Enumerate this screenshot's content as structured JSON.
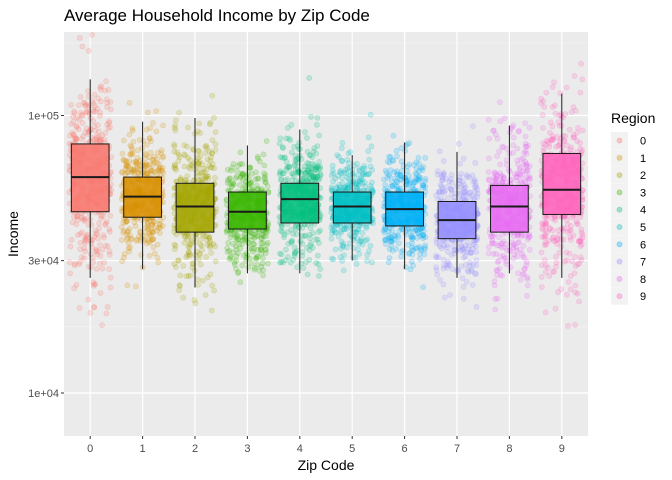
{
  "chart_data": {
    "type": "box-jitter",
    "title": "Average Household Income by Zip Code",
    "xlabel": "Zip Code",
    "ylabel": "Income",
    "y_scale": "log10",
    "ylim": [
      7000,
      200000
    ],
    "y_ticks": [
      {
        "value": 10000,
        "label": "1e+04"
      },
      {
        "value": 30000,
        "label": "3e+04"
      },
      {
        "value": 100000,
        "label": "1e+05"
      }
    ],
    "categories": [
      "0",
      "1",
      "2",
      "3",
      "4",
      "5",
      "6",
      "7",
      "8",
      "9"
    ],
    "boxes": [
      {
        "name": "0",
        "color": "#F8766D",
        "whisker_low": 26000,
        "q1": 45000,
        "median": 60000,
        "q3": 79000,
        "whisker_high": 135000
      },
      {
        "name": "1",
        "color": "#D89000",
        "whisker_low": 28000,
        "q1": 43000,
        "median": 51000,
        "q3": 60000,
        "whisker_high": 95000
      },
      {
        "name": "2",
        "color": "#A3A500",
        "whisker_low": 24000,
        "q1": 38000,
        "median": 47000,
        "q3": 57000,
        "whisker_high": 98000
      },
      {
        "name": "3",
        "color": "#39B600",
        "whisker_low": 27000,
        "q1": 39000,
        "median": 45000,
        "q3": 53000,
        "whisker_high": 78000
      },
      {
        "name": "4",
        "color": "#00BF7D",
        "whisker_low": 27000,
        "q1": 41000,
        "median": 50000,
        "q3": 57000,
        "whisker_high": 89000
      },
      {
        "name": "5",
        "color": "#00BFC4",
        "whisker_low": 30000,
        "q1": 41000,
        "median": 47000,
        "q3": 53000,
        "whisker_high": 72000
      },
      {
        "name": "6",
        "color": "#00B0F6",
        "whisker_low": 28000,
        "q1": 40000,
        "median": 46000,
        "q3": 53000,
        "whisker_high": 80000
      },
      {
        "name": "7",
        "color": "#9590FF",
        "whisker_low": 26000,
        "q1": 36000,
        "median": 42000,
        "q3": 49000,
        "whisker_high": 74000
      },
      {
        "name": "8",
        "color": "#E76BF3",
        "whisker_low": 27000,
        "q1": 38000,
        "median": 47000,
        "q3": 56000,
        "whisker_high": 92000
      },
      {
        "name": "9",
        "color": "#FF62BC",
        "whisker_low": 26000,
        "q1": 44000,
        "median": 54000,
        "q3": 73000,
        "whisker_high": 120000
      }
    ],
    "legend": {
      "title": "Region",
      "position": "right",
      "entries": [
        "0",
        "1",
        "2",
        "3",
        "4",
        "5",
        "6",
        "7",
        "8",
        "9"
      ]
    },
    "background": "#EBEBEB",
    "grid": true
  }
}
